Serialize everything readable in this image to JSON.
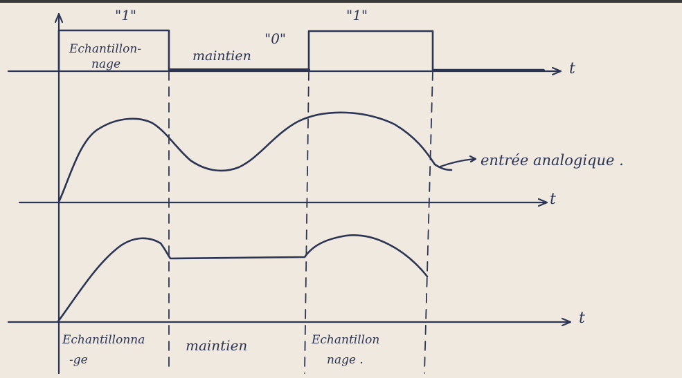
{
  "labels": {
    "one_first": "\"1\"",
    "one_second": "\"1\"",
    "zero": "\"0\"",
    "echant_top_1": "Echantillon-",
    "echant_top_2": "nage",
    "maintien_top": "maintien",
    "t_axis_1": "t",
    "t_axis_2": "t",
    "t_axis_3": "t",
    "entree": "entrée analogique .",
    "bottom_echant1_1": "Echantillonna",
    "bottom_echant1_2": "-ge",
    "bottom_maintien": "maintien",
    "bottom_echant2_1": "Echantillon",
    "bottom_echant2_2": "nage ."
  },
  "colors": {
    "paper": "#efe9df",
    "ink": "#2c3454"
  }
}
